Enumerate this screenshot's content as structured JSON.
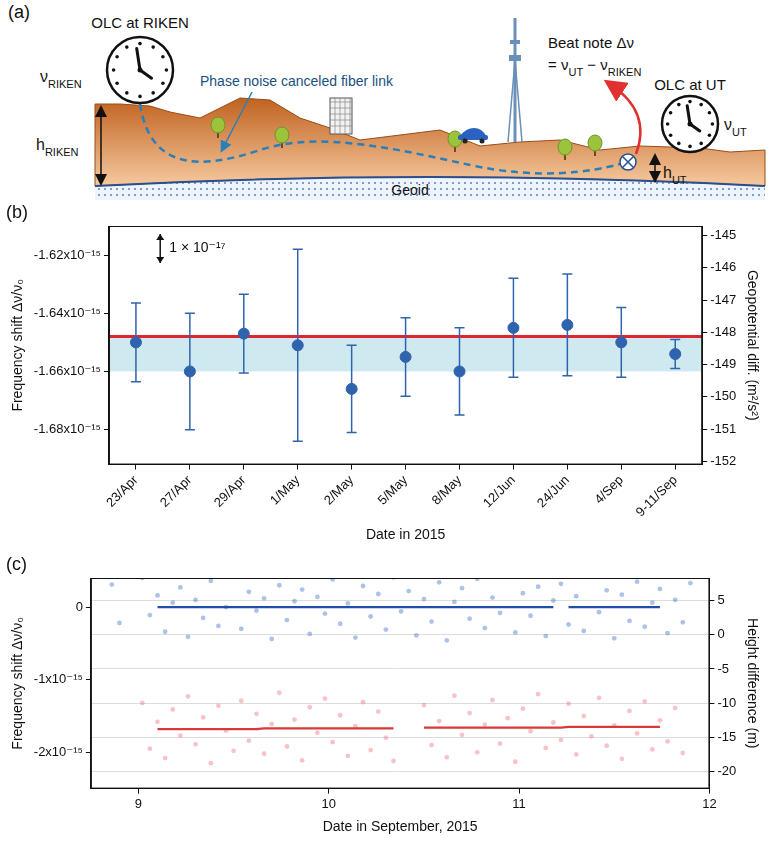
{
  "diagram": {
    "panel": "(a)",
    "left_clock": {
      "title": "OLC at RIKEN",
      "freq": {
        "symbol": "ν",
        "sub": "RIKEN"
      },
      "height": {
        "symbol": "h",
        "sub": "RIKEN"
      }
    },
    "right_clock": {
      "title": "OLC at UT",
      "freq": {
        "symbol": "ν",
        "sub": "UT"
      },
      "height": {
        "symbol": "h",
        "sub": "UT"
      }
    },
    "fiber_label": "Phase noise canceled fiber link",
    "beat_note": [
      [
        {
          "text": "Beat note Δν"
        }
      ],
      [
        {
          "text": "= ν"
        },
        {
          "sub": "UT"
        },
        {
          "text": " − ν"
        },
        {
          "sub": "RIKEN"
        }
      ]
    ],
    "geoid_label": "Geoid"
  },
  "chart_data": [
    {
      "panel": "(b)",
      "type": "scatter",
      "categories": [
        "23/Apr",
        "27/Apr",
        "29/Apr",
        "1/May",
        "2/May",
        "5/May",
        "8/May",
        "12/Jun",
        "24/Jun",
        "4/Sep",
        "9-11/Sep"
      ],
      "series": [
        {
          "color": "#2f63ad",
          "marker": "circle",
          "line_style": "none",
          "values": [
            -1.65e-15,
            -1.66e-15,
            -1.647e-15,
            -1.651e-15,
            -1.666e-15,
            -1.655e-15,
            -1.66e-15,
            -1.645e-15,
            -1.644e-15,
            -1.65e-15,
            -1.654e-15
          ],
          "errors": [
            1.35e-17,
            2e-17,
            1.35e-17,
            3.3e-17,
            1.5e-17,
            1.35e-17,
            1.5e-17,
            1.7e-17,
            1.75e-17,
            1.2e-17,
            5e-18
          ]
        }
      ],
      "xlabel": "Date in 2015",
      "ylabel": "Frequency shift Δν/ν₀",
      "y2label": "Geopotential diff. (m²/s²)",
      "ylim": [
        -1.692e-15,
        -1.61e-15
      ],
      "yticks": [
        {
          "value": -1.68e-15,
          "label": "-1.68x10⁻¹⁵"
        },
        {
          "value": -1.66e-15,
          "label": "-1.66x10⁻¹⁵"
        },
        {
          "value": -1.64e-15,
          "label": "-1.64x10⁻¹⁵"
        },
        {
          "value": -1.62e-15,
          "label": "-1.62x10⁻¹⁵"
        }
      ],
      "y2lim": [
        -152.1,
        -144.7
      ],
      "y2ticks": [
        -152,
        -151,
        -150,
        -149,
        -148,
        -147,
        -146,
        -145
      ],
      "reference_line": {
        "value": -1.648e-15,
        "color": "#e0262c"
      },
      "band": {
        "from": -1.66e-15,
        "to": -1.648e-15,
        "color": "#cfe9f1"
      },
      "annotation": {
        "text": "1 × 10⁻¹⁷",
        "scale_bar": 1e-17
      },
      "grid": false
    },
    {
      "panel": "(c)",
      "type": "scatter",
      "x": [
        8.86,
        8.9,
        8.94,
        8.98,
        9.02,
        9.06,
        9.1,
        9.14,
        9.18,
        9.22,
        9.26,
        9.3,
        9.34,
        9.38,
        9.42,
        9.46,
        9.5,
        9.54,
        9.58,
        9.62,
        9.66,
        9.7,
        9.74,
        9.78,
        9.82,
        9.86,
        9.9,
        9.94,
        9.98,
        10.02,
        10.06,
        10.1,
        10.14,
        10.18,
        10.22,
        10.26,
        10.3,
        10.34,
        10.38,
        10.42,
        10.46,
        10.5,
        10.54,
        10.58,
        10.62,
        10.66,
        10.7,
        10.74,
        10.78,
        10.82,
        10.86,
        10.9,
        10.94,
        10.98,
        11.02,
        11.06,
        11.1,
        11.14,
        11.18,
        11.22,
        11.26,
        11.3,
        11.34,
        11.38,
        11.42,
        11.46,
        11.5,
        11.54,
        11.58,
        11.62,
        11.66,
        11.7,
        11.74,
        11.78,
        11.82,
        11.86,
        11.9
      ],
      "series": [
        {
          "type": "scatter",
          "marker": "circle",
          "color": "#4a78c8",
          "values": [
            3.1e-16,
            -2.2e-16,
            null,
            null,
            4e-16,
            -1.1e-16,
            1.6e-16,
            -3.4e-16,
            6e-17,
            2.7e-16,
            -4.1e-16,
            1e-16,
            -1.5e-16,
            3.6e-16,
            -2.6e-16,
            0,
            4.3e-16,
            -3e-16,
            2.1e-16,
            -5e-17,
            1.2e-16,
            -4.4e-16,
            3e-16,
            -1.8e-16,
            8e-17,
            2.4e-16,
            -3.7e-16,
            1.4e-16,
            -9e-17,
            3.8e-16,
            -2.3e-16,
            5e-17,
            -4.2e-16,
            2.9e-16,
            -1.3e-16,
            1.8e-16,
            -3.1e-16,
            4.1e-16,
            -6e-17,
            2.2e-16,
            -3.9e-16,
            1.1e-16,
            -2e-16,
            3.4e-16,
            -4.6e-16,
            7e-17,
            2.6e-16,
            -1.6e-16,
            3.9e-16,
            -2.9e-16,
            1.3e-16,
            -8e-17,
            4.4e-16,
            -3.5e-16,
            1.9e-16,
            -1.2e-16,
            2.8e-16,
            -4e-16,
            9e-17,
            3.2e-16,
            -2.4e-16,
            1.5e-16,
            -3.3e-16,
            4.2e-16,
            -7e-17,
            2.3e-16,
            -4.3e-16,
            1.7e-16,
            -1.9e-16,
            3.5e-16,
            -2.7e-16,
            6e-17,
            2.5e-16,
            -3.6e-16,
            1e-16,
            -2.1e-16,
            3.3e-16
          ]
        },
        {
          "type": "line",
          "line_style": "solid",
          "color": "#1f4fa8",
          "values": [
            null,
            null,
            null,
            null,
            null,
            null,
            0,
            0,
            0,
            0,
            0,
            0,
            0,
            0,
            0,
            0,
            0,
            0,
            0,
            0,
            0,
            0,
            0,
            0,
            0,
            0,
            0,
            0,
            0,
            0,
            0,
            0,
            0,
            0,
            0,
            0,
            0,
            0,
            0,
            0,
            0,
            0,
            0,
            0,
            0,
            0,
            0,
            0,
            0,
            0,
            0,
            0,
            0,
            0,
            0,
            0,
            0,
            0,
            0,
            null,
            0,
            0,
            0,
            0,
            0,
            0,
            0,
            0,
            0,
            0,
            0,
            0,
            0,
            null,
            null,
            null,
            null
          ]
        },
        {
          "type": "scatter",
          "marker": "circle",
          "color": "#f07a80",
          "values": [
            null,
            null,
            null,
            null,
            -1.32e-15,
            -1.95e-15,
            -1.58e-15,
            -2.08e-15,
            -1.41e-15,
            -1.77e-15,
            -1.23e-15,
            -1.89e-15,
            -1.52e-15,
            -2.15e-15,
            -1.36e-15,
            -1.7e-15,
            -1.98e-15,
            -1.29e-15,
            -1.84e-15,
            -1.47e-15,
            -2.02e-15,
            -1.61e-15,
            -1.18e-15,
            -1.92e-15,
            -1.55e-15,
            -2.11e-15,
            -1.38e-15,
            -1.73e-15,
            -1.26e-15,
            -1.86e-15,
            -1.49e-15,
            -2.05e-15,
            -1.64e-15,
            -1.31e-15,
            -1.97e-15,
            -1.44e-15,
            -1.8e-15,
            -2.12e-15,
            null,
            null,
            null,
            -1.35e-15,
            -1.9e-15,
            -1.57e-15,
            -2.07e-15,
            -1.22e-15,
            -1.76e-15,
            -1.46e-15,
            -2e-15,
            -1.62e-15,
            -1.28e-15,
            -1.88e-15,
            -1.53e-15,
            -2.13e-15,
            -1.4e-15,
            -1.71e-15,
            -1.2e-15,
            -1.94e-15,
            -1.59e-15,
            -1.83e-15,
            -1.33e-15,
            -2.03e-15,
            -1.5e-15,
            -1.78e-15,
            -1.25e-15,
            -1.91e-15,
            -1.63e-15,
            -2.09e-15,
            -1.43e-15,
            -1.74e-15,
            -1.3e-15,
            -1.96e-15,
            -1.56e-15,
            -1.85e-15,
            -1.39e-15,
            -2.01e-15,
            null
          ]
        },
        {
          "type": "line",
          "line_style": "solid",
          "color": "#d83a3a",
          "values": [
            null,
            null,
            null,
            null,
            null,
            null,
            -1.68e-15,
            -1.68e-15,
            -1.68e-15,
            -1.68e-15,
            -1.68e-15,
            -1.68e-15,
            -1.68e-15,
            -1.68e-15,
            -1.68e-15,
            -1.68e-15,
            -1.68e-15,
            -1.68e-15,
            -1.68e-15,
            -1.68e-15,
            -1.67e-15,
            -1.67e-15,
            -1.67e-15,
            -1.67e-15,
            -1.67e-15,
            -1.67e-15,
            -1.67e-15,
            -1.67e-15,
            -1.67e-15,
            -1.67e-15,
            -1.67e-15,
            -1.67e-15,
            -1.67e-15,
            -1.67e-15,
            -1.67e-15,
            -1.67e-15,
            -1.67e-15,
            -1.67e-15,
            null,
            null,
            null,
            -1.66e-15,
            -1.66e-15,
            -1.66e-15,
            -1.66e-15,
            -1.66e-15,
            -1.66e-15,
            -1.66e-15,
            -1.66e-15,
            -1.66e-15,
            -1.66e-15,
            -1.66e-15,
            -1.66e-15,
            -1.66e-15,
            -1.66e-15,
            -1.66e-15,
            -1.66e-15,
            -1.66e-15,
            -1.66e-15,
            -1.66e-15,
            -1.65e-15,
            -1.65e-15,
            -1.65e-15,
            -1.65e-15,
            -1.65e-15,
            -1.65e-15,
            -1.65e-15,
            -1.65e-15,
            -1.65e-15,
            -1.65e-15,
            -1.65e-15,
            -1.65e-15,
            -1.65e-15,
            null,
            null,
            null,
            null
          ]
        }
      ],
      "xlabel": "Date in September, 2015",
      "ylabel": "Frequency shift Δν/ν₀",
      "y2label": "Height difference (m)",
      "xlim": [
        8.75,
        12
      ],
      "xticks": [
        9,
        10,
        11,
        12
      ],
      "ylim": [
        -2.5e-15,
        4e-16
      ],
      "yticks": [
        {
          "value": -2e-15,
          "label": "-2x10⁻¹⁵"
        },
        {
          "value": -1e-15,
          "label": "-1x10⁻¹⁵"
        },
        0
      ],
      "y2lim": [
        -22.5,
        8.3
      ],
      "y2ticks": [
        -20,
        -15,
        -10,
        -5,
        0,
        5
      ],
      "grid": true
    }
  ]
}
